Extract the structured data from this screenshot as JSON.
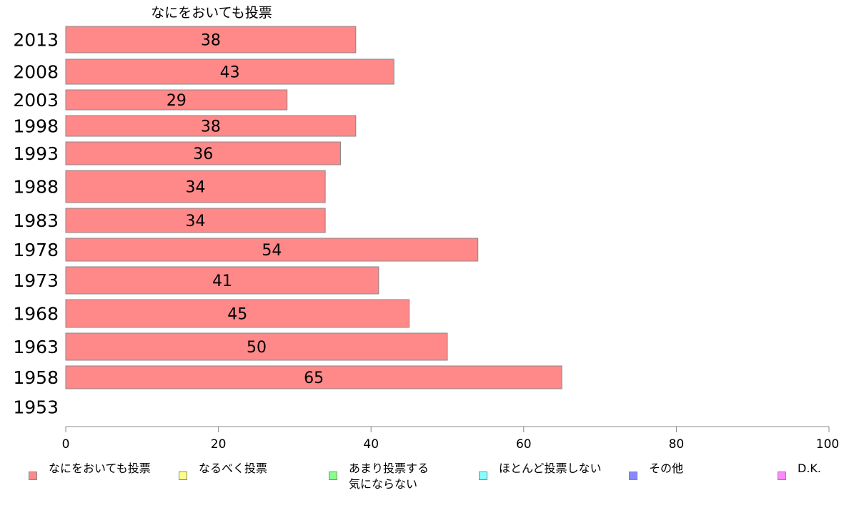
{
  "chart_data": {
    "type": "bar",
    "orientation": "horizontal",
    "title": "なにをおいても投票",
    "categories": [
      "2013",
      "2008",
      "2003",
      "1998",
      "1993",
      "1988",
      "1983",
      "1978",
      "1973",
      "1968",
      "1963",
      "1958",
      "1953"
    ],
    "series": [
      {
        "name": "なにをおいても投票",
        "color": "#ff8888",
        "values": [
          38,
          43,
          29,
          38,
          36,
          34,
          34,
          54,
          41,
          45,
          50,
          65,
          null
        ]
      }
    ],
    "xlim": [
      0,
      100
    ],
    "xticks": [
      0,
      20,
      40,
      60,
      80,
      100
    ],
    "data_labels": [
      "38",
      "43",
      "29",
      "38",
      "36",
      "34",
      "34",
      "54",
      "41",
      "45",
      "50",
      "65",
      ""
    ],
    "grid": false,
    "legend_position": "bottom"
  },
  "legend": [
    {
      "label": "なにをおいても投票",
      "color": "#ff8888"
    },
    {
      "label": "なるべく投票",
      "color": "#ffff88"
    },
    {
      "label": "あまり投票する\n気にならない",
      "color": "#88ff88"
    },
    {
      "label": "ほとんど投票しない",
      "color": "#88ffff"
    },
    {
      "label": "その他",
      "color": "#8888ff"
    },
    {
      "label": "D.K.",
      "color": "#ff88ff"
    }
  ]
}
